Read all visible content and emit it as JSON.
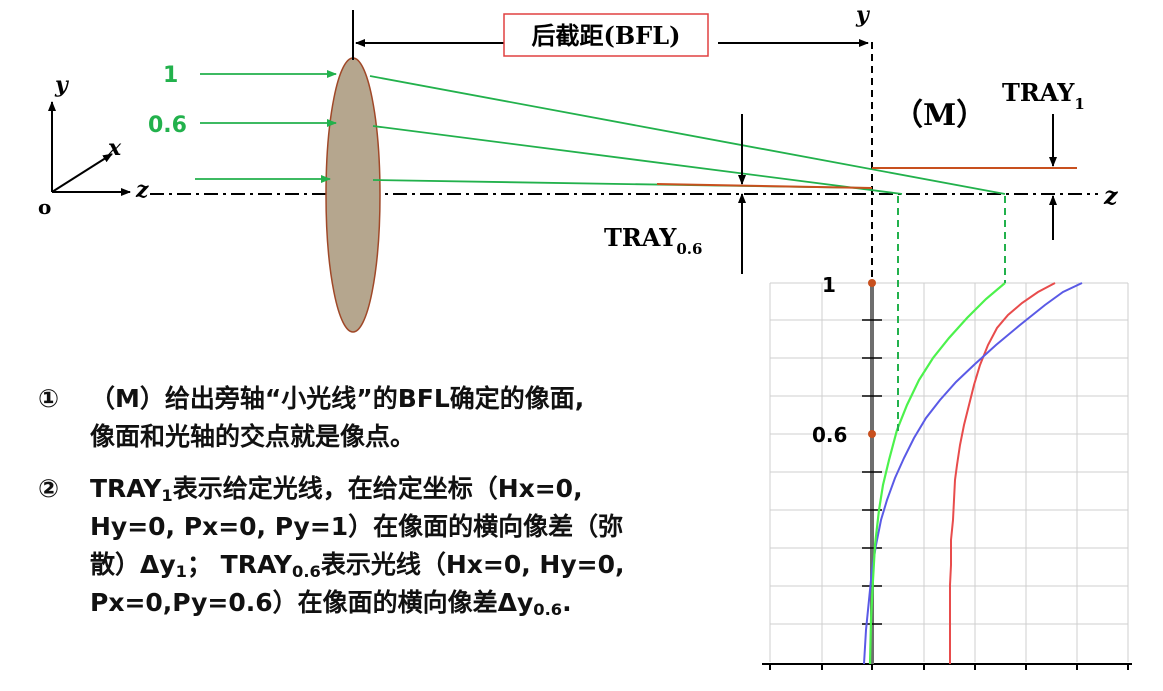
{
  "bfl_label": "后截距(BFL)",
  "axes_labels": {
    "y": "y",
    "x": "x",
    "z": "z",
    "origin": "o"
  },
  "ray_labels": {
    "r1": "1",
    "r06": "0.6"
  },
  "marker_M": "（M）",
  "tray1": {
    "main": "TRAY",
    "sub": "1"
  },
  "tray06": {
    "main": "TRAY",
    "sub": "0.6"
  },
  "plot_ticks": {
    "t1": "1",
    "t06": "0.6"
  },
  "notes": {
    "n1": {
      "num": "①",
      "line1": "（M）给出旁轴“小光线”的BFL确定的像面,",
      "line2": "像面和光轴的交点就是像点。"
    },
    "n2": {
      "num": "②",
      "a": "TRAY",
      "a_sub": "1",
      "b": "表示给定光线，在给定坐标（Hx=0,",
      "c": "Hy=0, Px=0, Py=1）在像面的横向像差（弥",
      "d": "散）Δy",
      "d_sub": "1",
      "e": "； TRAY",
      "e_sub": "0.6",
      "f": "表示光线（Hx=0, Hy=0,",
      "g": "Px=0,Py=0.6）在像面的横向像差Δy",
      "g_sub": "0.6",
      "h": "."
    }
  },
  "colors": {
    "green": "#22b14c",
    "bright_green": "#4cf24c",
    "blue": "#5a5ae6",
    "red": "#e84c4c",
    "brown": "#c8501e",
    "lens_fill": "#b5a68e",
    "lens_edge": "#a04828",
    "box_border": "#e04040"
  }
}
